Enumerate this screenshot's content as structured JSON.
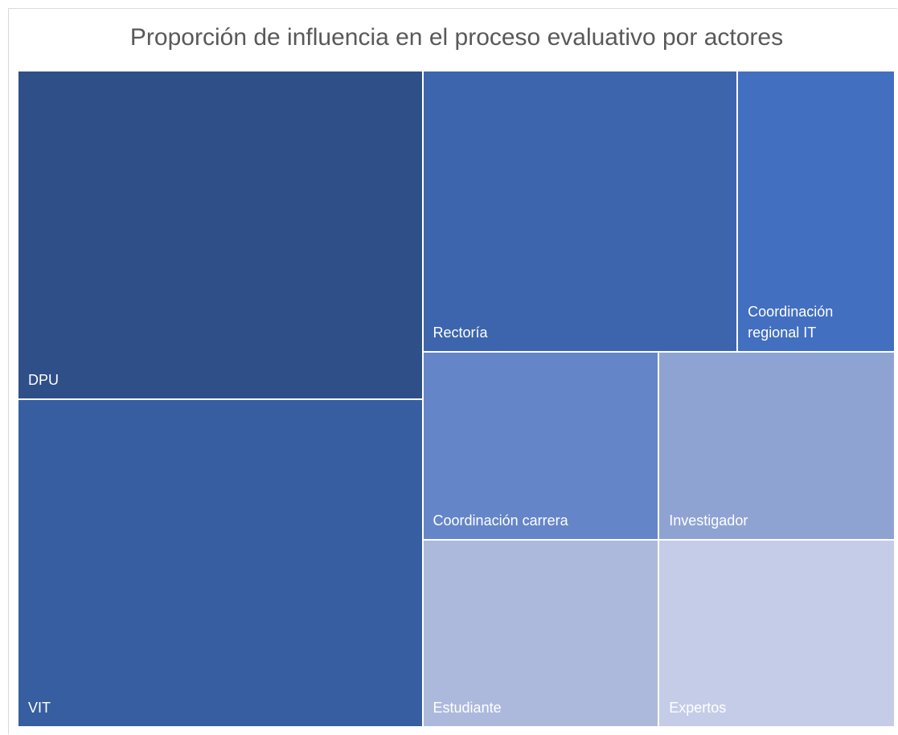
{
  "chart_data": {
    "type": "treemap",
    "title": "Proporción de influencia en el proceso evaluativo por actores",
    "categories": [
      "DPU",
      "VIT",
      "Rectoría",
      "Coordinación regional IT",
      "Coordinación carrera",
      "Estudiante",
      "Investigador",
      "Expertos"
    ],
    "values": [
      3,
      3,
      2,
      1,
      1,
      1,
      1,
      1
    ],
    "colors": [
      "#2e4f88",
      "#365ea0",
      "#3c65ae",
      "#436fc0",
      "#6585c9",
      "#adb9dc",
      "#8fa3d3",
      "#c5cce7"
    ]
  }
}
